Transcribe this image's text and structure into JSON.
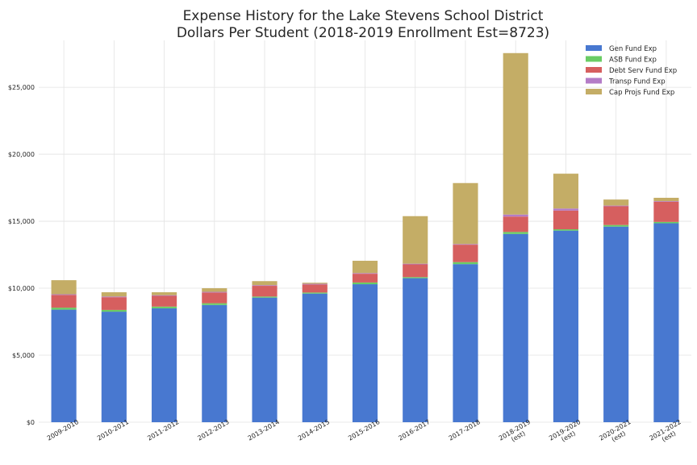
{
  "chart_data": {
    "type": "bar",
    "stacked": true,
    "title": [
      "Expense History for the Lake Stevens School District",
      "Dollars Per Student (2018-2019 Enrollment Est=8723)"
    ],
    "xlabel": "",
    "ylabel": "",
    "categories": [
      [
        "2009-2010"
      ],
      [
        "2010-2011"
      ],
      [
        "2011-2012"
      ],
      [
        "2012-2013"
      ],
      [
        "2013-2014"
      ],
      [
        "2014-2015"
      ],
      [
        "2015-2016"
      ],
      [
        "2016-2017"
      ],
      [
        "2017-2018"
      ],
      [
        "2018-2019",
        "(est)"
      ],
      [
        "2019-2020",
        "(est)"
      ],
      [
        "2020-2021",
        "(est)"
      ],
      [
        "2021-2022",
        "(est)"
      ]
    ],
    "ylim": [
      0,
      28500
    ],
    "yticks": [
      0,
      5000,
      10000,
      15000,
      20000,
      25000
    ],
    "ytick_labels": [
      "$0",
      "$5,000",
      "$10,000",
      "$15,000",
      "$20,000",
      "$25,000"
    ],
    "grid": true,
    "legend_position": "top-right",
    "series": [
      {
        "name": "Gen Fund Exp",
        "color": "#4878d0",
        "values": [
          8400,
          8250,
          8500,
          8750,
          9300,
          9600,
          10300,
          10750,
          11800,
          14050,
          14300,
          14600,
          14850
        ]
      },
      {
        "name": "ASB Fund Exp",
        "color": "#6acc64",
        "values": [
          150,
          130,
          130,
          130,
          80,
          80,
          130,
          80,
          150,
          150,
          100,
          120,
          100
        ]
      },
      {
        "name": "Debt Serv Fund Exp",
        "color": "#d65f5f",
        "values": [
          950,
          950,
          800,
          800,
          800,
          600,
          650,
          950,
          1300,
          1150,
          1400,
          1400,
          1500
        ]
      },
      {
        "name": "Transp Fund Exp",
        "color": "#b47cc7",
        "values": [
          50,
          50,
          50,
          50,
          50,
          50,
          50,
          50,
          50,
          150,
          150,
          50,
          50
        ]
      },
      {
        "name": "Cap Projs Fund Exp",
        "color": "#c4ad66",
        "values": [
          1050,
          320,
          220,
          270,
          300,
          80,
          920,
          3550,
          4550,
          12050,
          2600,
          450,
          250
        ]
      }
    ]
  }
}
